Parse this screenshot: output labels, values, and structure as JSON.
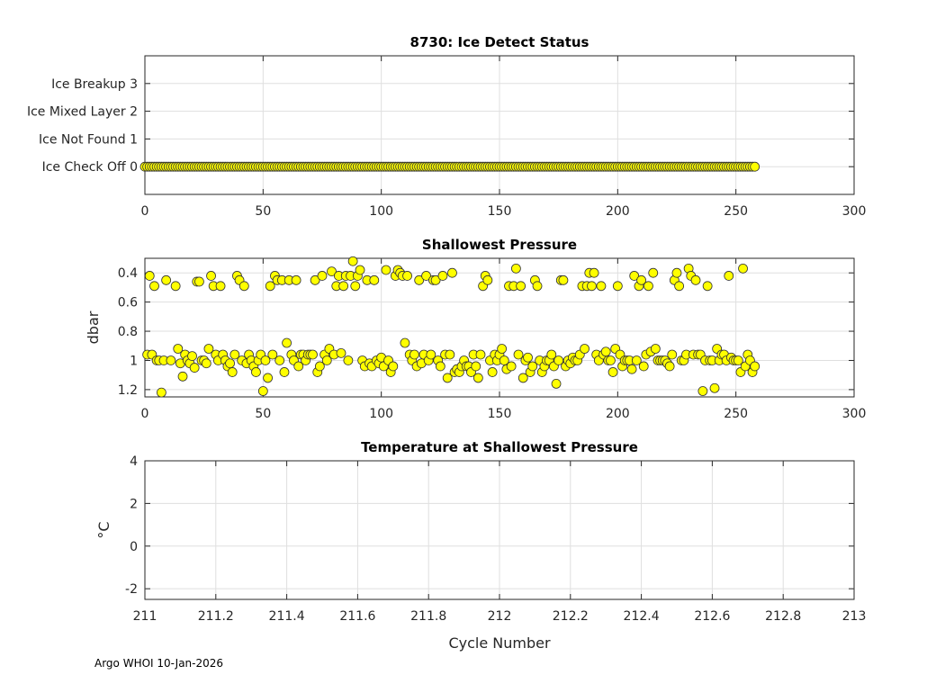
{
  "colors": {
    "marker_fill": "#ffff00",
    "marker_edge": "#333333",
    "grid": "#dfdfdf",
    "axis": "#262626"
  },
  "footer": {
    "text": "Argo WHOI 10-Jan-2026"
  },
  "chart_data": [
    {
      "type": "scatter",
      "title": "8730: Ice Detect Status",
      "xlabel": "",
      "ylabel": "",
      "xlim": [
        0,
        300
      ],
      "ylim": [
        -1,
        4
      ],
      "xticks": [
        0,
        50,
        100,
        150,
        200,
        250,
        300
      ],
      "yticks": [
        0,
        1,
        2,
        3
      ],
      "yticklabels": [
        "Ice Check Off 0",
        "Ice Not Found 1",
        "Ice Mixed Layer 2",
        "Ice Breakup 3"
      ],
      "grid": true,
      "series": [
        {
          "name": "Ice Detect Status",
          "x_range": [
            0,
            258
          ],
          "constant_y": 0
        }
      ]
    },
    {
      "type": "scatter",
      "title": "Shallowest Pressure",
      "xlabel": "",
      "ylabel": "dbar",
      "xlim": [
        0,
        300
      ],
      "ylim": [
        0.3,
        1.25
      ],
      "y_reversed": true,
      "xticks": [
        0,
        50,
        100,
        150,
        200,
        250,
        300
      ],
      "yticks": [
        0.4,
        0.6,
        0.8,
        1,
        1.2
      ],
      "grid": true,
      "series": [
        {
          "name": "Shallowest Pressure",
          "x": [
            1,
            2,
            3,
            4,
            5,
            6,
            7,
            8,
            9,
            11,
            13,
            14,
            15,
            16,
            17,
            18,
            19,
            20,
            21,
            22,
            23,
            24,
            25,
            26,
            27,
            28,
            29,
            30,
            31,
            32,
            33,
            34,
            35,
            36,
            37,
            38,
            39,
            40,
            41,
            42,
            43,
            44,
            45,
            46,
            47,
            48,
            49,
            50,
            51,
            52,
            53,
            54,
            55,
            56,
            57,
            58,
            59,
            60,
            61,
            62,
            63,
            64,
            65,
            66,
            67,
            68,
            69,
            70,
            71,
            72,
            73,
            74,
            75,
            76,
            77,
            78,
            79,
            80,
            81,
            82,
            83,
            84,
            85,
            86,
            87,
            88,
            89,
            90,
            91,
            92,
            93,
            94,
            95,
            96,
            97,
            98,
            99,
            100,
            101,
            102,
            103,
            104,
            105,
            106,
            107,
            108,
            109,
            110,
            111,
            112,
            113,
            114,
            115,
            116,
            117,
            118,
            119,
            120,
            121,
            122,
            123,
            124,
            125,
            126,
            127,
            128,
            129,
            130,
            131,
            132,
            133,
            134,
            135,
            136,
            137,
            138,
            139,
            140,
            141,
            142,
            143,
            144,
            145,
            146,
            147,
            148,
            149,
            150,
            151,
            152,
            153,
            154,
            155,
            156,
            157,
            158,
            159,
            160,
            161,
            162,
            163,
            164,
            165,
            166,
            167,
            168,
            169,
            170,
            171,
            172,
            173,
            174,
            175,
            176,
            177,
            178,
            179,
            180,
            181,
            182,
            183,
            184,
            185,
            186,
            187,
            188,
            189,
            190,
            191,
            192,
            193,
            194,
            195,
            196,
            197,
            198,
            199,
            200,
            201,
            202,
            203,
            204,
            205,
            206,
            207,
            208,
            209,
            210,
            211,
            212,
            213,
            214,
            215,
            216,
            217,
            218,
            219,
            220,
            221,
            222,
            223,
            224,
            225,
            226,
            227,
            228,
            229,
            230,
            231,
            232,
            233,
            234,
            235,
            236,
            237,
            238,
            239,
            240,
            241,
            242,
            243,
            244,
            245,
            246,
            247,
            248,
            249,
            250,
            251,
            252,
            253,
            254,
            255,
            256,
            257,
            258
          ],
          "y": [
            0.96,
            0.42,
            0.96,
            0.49,
            1.0,
            1.0,
            1.22,
            1.0,
            0.45,
            1.0,
            0.49,
            0.92,
            1.02,
            1.11,
            0.96,
            1.0,
            1.02,
            0.97,
            1.05,
            0.46,
            0.46,
            1.0,
            1.0,
            1.02,
            0.92,
            0.42,
            0.49,
            0.96,
            1.0,
            0.49,
            0.96,
            1.0,
            1.04,
            1.02,
            1.08,
            0.96,
            0.42,
            0.45,
            1.0,
            0.49,
            1.02,
            0.96,
            1.0,
            1.04,
            1.08,
            1.0,
            0.96,
            1.21,
            1.0,
            1.12,
            0.49,
            0.96,
            0.42,
            0.45,
            1.0,
            0.45,
            1.08,
            0.88,
            0.45,
            0.96,
            1.0,
            0.45,
            1.04,
            0.96,
            0.96,
            1.0,
            0.96,
            0.96,
            0.96,
            0.45,
            1.08,
            1.04,
            0.42,
            0.96,
            1.0,
            0.92,
            0.39,
            0.96,
            0.49,
            0.42,
            0.95,
            0.49,
            0.42,
            1.0,
            0.42,
            0.32,
            0.49,
            0.42,
            0.38,
            1.0,
            1.04,
            0.45,
            1.02,
            1.04,
            0.45,
            1.0,
            1.02,
            0.98,
            1.04,
            0.38,
            1.0,
            1.08,
            1.04,
            0.42,
            0.38,
            0.4,
            0.42,
            0.88,
            0.42,
            0.96,
            1.0,
            0.96,
            1.04,
            0.45,
            1.02,
            0.96,
            0.42,
            1.0,
            0.96,
            0.45,
            0.45,
            1.0,
            1.04,
            0.42,
            0.96,
            1.12,
            0.96,
            0.4,
            1.08,
            1.06,
            1.08,
            1.04,
            1.0,
            1.04,
            1.04,
            1.08,
            0.96,
            1.04,
            1.12,
            0.96,
            0.49,
            0.42,
            0.45,
            1.0,
            1.08,
            0.96,
            1.0,
            0.96,
            0.92,
            1.0,
            1.06,
            0.49,
            1.04,
            0.49,
            0.37,
            0.96,
            0.49,
            1.12,
            1.0,
            0.98,
            1.08,
            1.04,
            0.45,
            0.49,
            1.0,
            1.08,
            1.04,
            1.0,
            1.0,
            0.96,
            1.04,
            1.16,
            1.0,
            0.45,
            0.45,
            1.04,
            1.0,
            1.02,
            0.98,
            1.0,
            1.0,
            0.96,
            0.49,
            0.92,
            0.49,
            0.4,
            0.49,
            0.4,
            0.96,
            1.0,
            0.49,
            0.96,
            0.94,
            1.0,
            1.0,
            1.08,
            0.92,
            0.49,
            0.96,
            1.04,
            1.0,
            1.0,
            1.0,
            1.06,
            0.42,
            1.0,
            0.49,
            0.45,
            1.04,
            0.96,
            0.49,
            0.94,
            0.4,
            0.92,
            1.0,
            1.0,
            1.0,
            1.0,
            1.02,
            1.04,
            0.96,
            0.45,
            0.4,
            0.49,
            1.0,
            1.0,
            0.96,
            0.37,
            0.42,
            0.96,
            0.45,
            0.96,
            0.96,
            1.21,
            1.0,
            0.49,
            1.0,
            1.0,
            1.19,
            0.92,
            1.0,
            0.96,
            0.96,
            1.0,
            0.42,
            0.98,
            1.0,
            1.0,
            1.0,
            1.08,
            0.37,
            1.04,
            0.96,
            1.0,
            1.08,
            1.04
          ]
        }
      ]
    },
    {
      "type": "scatter",
      "title": "Temperature at Shallowest Pressure",
      "xlabel": "Cycle Number",
      "ylabel": "°C",
      "xlim": [
        211,
        213
      ],
      "ylim": [
        -2.5,
        4
      ],
      "xticks": [
        211,
        211.2,
        211.4,
        211.6,
        211.8,
        212,
        212.2,
        212.4,
        212.6,
        212.8,
        213
      ],
      "yticks": [
        -2,
        0,
        2,
        4
      ],
      "grid": true,
      "series": []
    }
  ]
}
